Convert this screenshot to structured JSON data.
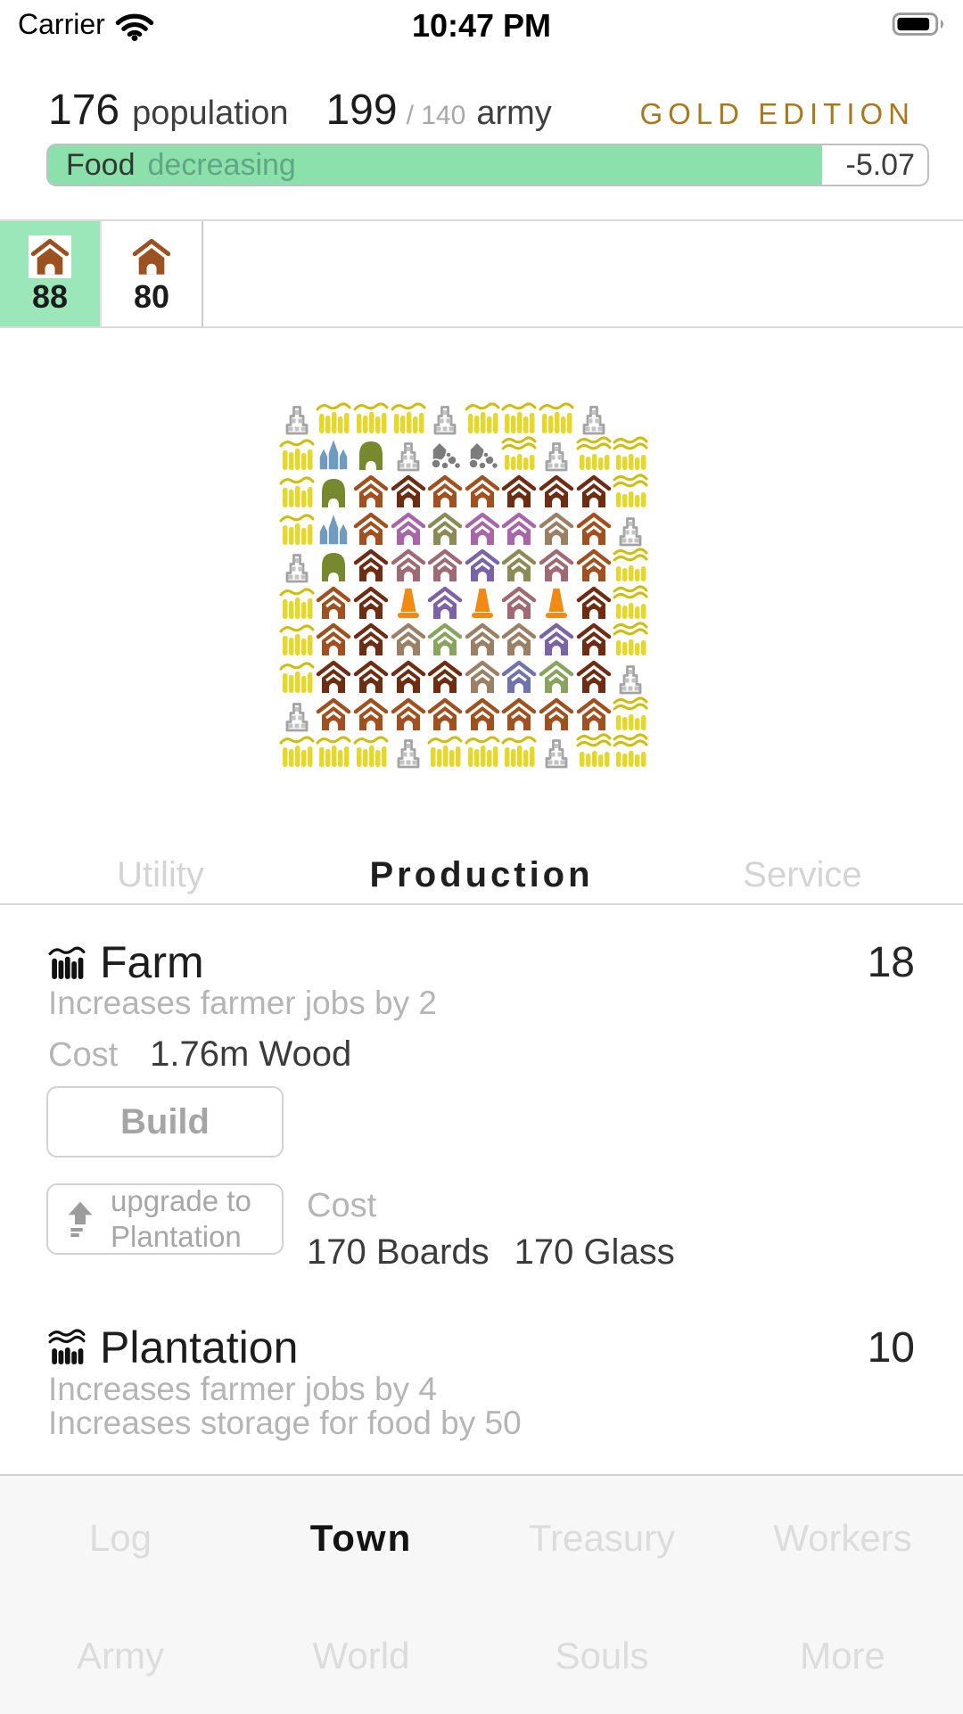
{
  "status_bar": {
    "carrier": "Carrier",
    "time": "10:47 PM"
  },
  "header": {
    "population_value": "176",
    "population_label": "population",
    "army_value": "199",
    "army_cap": "/ 140",
    "army_label": "army",
    "edition": "GOLD EDITION",
    "edition_color": "#ab771c"
  },
  "food_bar": {
    "resource": "Food",
    "trend": "decreasing",
    "value": "-5.07",
    "fill_percent": 88,
    "fill_color": "#8ce0ab"
  },
  "district_tabs": [
    {
      "count": "88",
      "selected": true,
      "selected_color": "#9ce7b9"
    },
    {
      "count": "80",
      "selected": false
    }
  ],
  "town_map": {
    "columns": 10,
    "rows": 10,
    "cells": [
      [
        "C",
        "F",
        "F",
        "F",
        "C",
        "F",
        "F",
        "F",
        "C",
        "E"
      ],
      [
        "F",
        "B",
        "G",
        "C",
        "R",
        "R",
        "F2",
        "C",
        "F2",
        "F2"
      ],
      [
        "F",
        "G",
        "h1",
        "h2",
        "h1",
        "h1",
        "h2",
        "h2",
        "h2",
        "F2"
      ],
      [
        "F",
        "B",
        "h1",
        "h3",
        "h6",
        "h3",
        "h3",
        "h7",
        "h1",
        "C"
      ],
      [
        "C",
        "G",
        "h2",
        "h4",
        "h4",
        "h5",
        "h6",
        "h4",
        "h1",
        "F2"
      ],
      [
        "F",
        "h1",
        "h2",
        "O",
        "h5",
        "O",
        "h4",
        "O",
        "h2",
        "F2"
      ],
      [
        "F",
        "h1",
        "h2",
        "h7",
        "h8",
        "h7",
        "h7",
        "h5",
        "h2",
        "F2"
      ],
      [
        "F",
        "h2",
        "h2",
        "h2",
        "h2",
        "h7",
        "h9",
        "h8",
        "h2",
        "C"
      ],
      [
        "C",
        "h1",
        "h1",
        "h1",
        "h1",
        "h1",
        "h1",
        "h1",
        "h1",
        "F2"
      ],
      [
        "F",
        "F",
        "F",
        "C",
        "F",
        "F",
        "F",
        "C",
        "F2",
        "F2"
      ]
    ],
    "legend": {
      "F": "grain-field",
      "F2": "plantation-field",
      "C": "warehouse",
      "B": "church",
      "G": "grove",
      "R": "quarry",
      "O": "watchtower",
      "E": "empty",
      "h1": "house-brown",
      "h2": "house-dark-brown",
      "h3": "house-purple",
      "h4": "house-mauve",
      "h5": "house-violet",
      "h6": "house-olive",
      "h7": "house-tan",
      "h8": "house-green",
      "h9": "house-blue"
    },
    "palette": {
      "wheat": "#e6d72b",
      "wave": "#cfbd0e",
      "castle": "#a3a3a3",
      "castle_inner": "#c3c3c3",
      "church": "#6f9cbe",
      "grove": "#78882f",
      "quarry": "#7c7c7c",
      "tower": "#f18a15",
      "h1": "#a0511f",
      "h2": "#6e2d12",
      "h3": "#a965a9",
      "h4": "#a06a74",
      "h5": "#7b63a8",
      "h6": "#8b8c55",
      "h7": "#9b8066",
      "h8": "#88a45e",
      "h9": "#7074ae",
      "tab_house": "#9c5121",
      "black_icon": "#111111"
    }
  },
  "section_tabs": [
    {
      "label": "Utility",
      "active": false
    },
    {
      "label": "Production",
      "active": true
    },
    {
      "label": "Service",
      "active": false
    }
  ],
  "buildings": [
    {
      "name": "Farm",
      "count": "18",
      "description": "Increases farmer jobs by 2",
      "cost_label": "Cost",
      "cost": "1.76m Wood",
      "build_label": "Build",
      "upgrade": {
        "label_line1": "upgrade to",
        "label_line2": "Plantation",
        "cost_label": "Cost",
        "costs": [
          "170 Boards",
          "170 Glass"
        ]
      }
    },
    {
      "name": "Plantation",
      "count": "10",
      "description1": "Increases farmer jobs by 4",
      "description2": "Increases storage for food by 50"
    }
  ],
  "bottom_nav": {
    "rows": [
      [
        {
          "label": "Log",
          "active": false
        },
        {
          "label": "Town",
          "active": true
        },
        {
          "label": "Treasury",
          "active": false
        },
        {
          "label": "Workers",
          "active": false
        }
      ],
      [
        {
          "label": "Army",
          "active": false
        },
        {
          "label": "World",
          "active": false
        },
        {
          "label": "Souls",
          "active": false
        },
        {
          "label": "More",
          "active": false
        }
      ]
    ]
  }
}
